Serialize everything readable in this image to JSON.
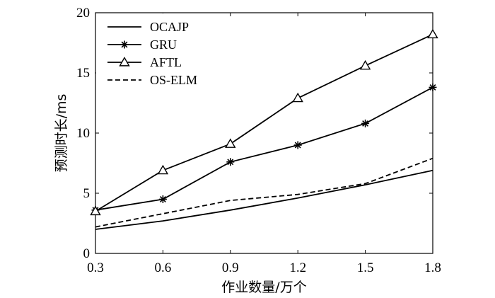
{
  "chart_data": {
    "type": "line",
    "xlabel": "作业数量/万个",
    "ylabel": "预测时长/ms",
    "x": [
      0.3,
      0.6,
      0.9,
      1.2,
      1.5,
      1.8
    ],
    "x_tick_labels": [
      "0.3",
      "0.6",
      "0.9",
      "1.2",
      "1.5",
      "1.8"
    ],
    "y_ticks": [
      0,
      5,
      10,
      15,
      20
    ],
    "y_tick_labels": [
      "0",
      "5",
      "10",
      "15",
      "20"
    ],
    "xlim": [
      0.3,
      1.8
    ],
    "ylim": [
      0,
      20
    ],
    "grid": false,
    "legend_position": "top-left",
    "series": [
      {
        "name": "OCAJP",
        "marker": "none",
        "dash": "solid",
        "color": "#000000",
        "values": [
          2.0,
          2.7,
          3.6,
          4.6,
          5.7,
          6.9
        ]
      },
      {
        "name": "GRU",
        "marker": "star",
        "dash": "solid",
        "color": "#000000",
        "values": [
          3.6,
          4.5,
          7.6,
          9.0,
          10.8,
          13.8
        ]
      },
      {
        "name": "AFTL",
        "marker": "triangle",
        "dash": "solid",
        "color": "#000000",
        "values": [
          3.5,
          6.9,
          9.1,
          12.9,
          15.6,
          18.2
        ]
      },
      {
        "name": "OS-ELM",
        "marker": "none",
        "dash": "dashed",
        "color": "#000000",
        "values": [
          2.2,
          3.3,
          4.4,
          4.9,
          5.8,
          7.9
        ]
      }
    ]
  }
}
